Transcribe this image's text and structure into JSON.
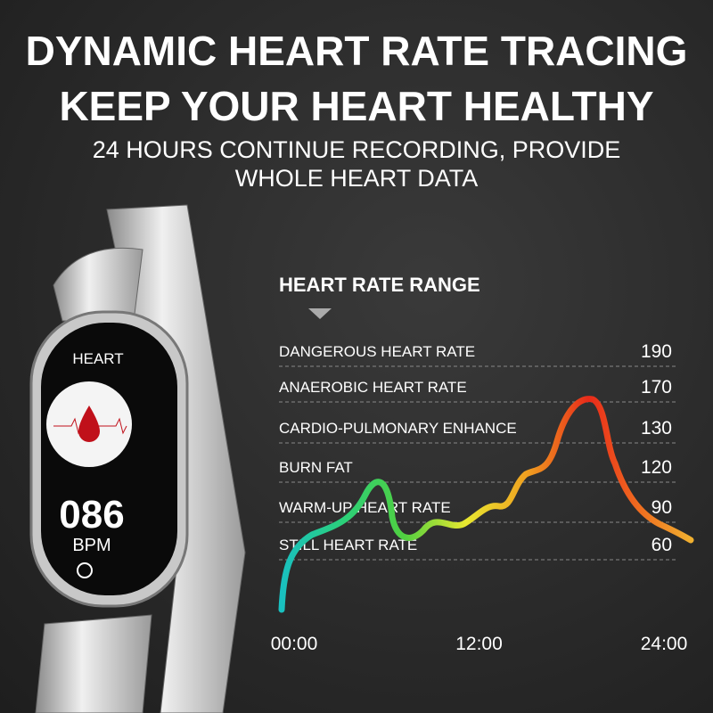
{
  "header": {
    "title_lines": [
      "DYNAMIC HEART RATE TRACING",
      "KEEP YOUR HEART HEALTHY"
    ],
    "subtitle_lines": [
      "24 HOURS CONTINUE RECORDING, PROVIDE",
      "WHOLE HEART DATA"
    ]
  },
  "watch": {
    "label": "HEART",
    "reading": "086",
    "unit": "BPM"
  },
  "range_chart": {
    "title": "HEART RATE RANGE",
    "zones": [
      {
        "label": "DANGEROUS HEART RATE",
        "value": "190"
      },
      {
        "label": "ANAEROBIC HEART RATE",
        "value": "170"
      },
      {
        "label": "CARDIO-PULMONARY ENHANCE",
        "value": "130"
      },
      {
        "label": "BURN FAT",
        "value": "120"
      },
      {
        "label": "WARM-UP HEART RATE",
        "value": "90"
      },
      {
        "label": "STILL HEART RATE",
        "value": "60"
      }
    ],
    "time_labels": [
      "00:00",
      "12:00",
      "24:00"
    ]
  }
}
